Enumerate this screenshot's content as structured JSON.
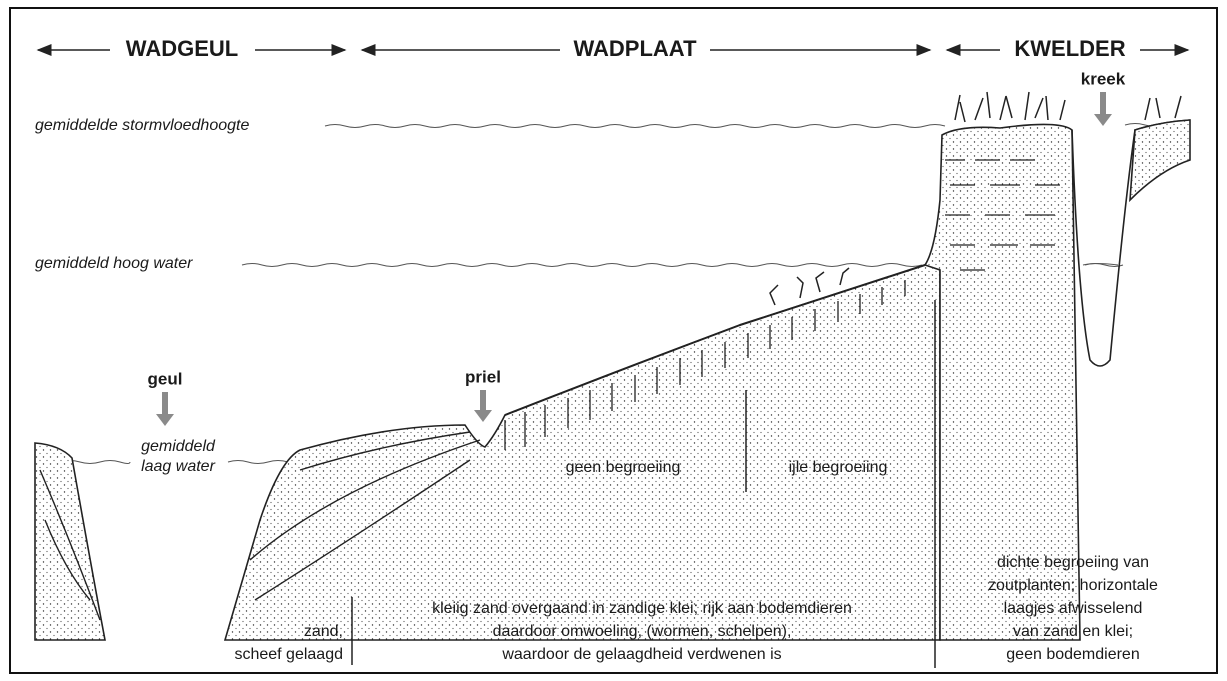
{
  "zones": {
    "wadgeul": "WADGEUL",
    "wadplaat": "WADPLAAT",
    "kwelder": "KWELDER"
  },
  "levels": {
    "storm": "gemiddelde stormvloedhoogte",
    "high": "gemiddeld hoog water",
    "low": [
      "gemiddeld",
      "laag water"
    ]
  },
  "markers": {
    "geul": "geul",
    "priel": "priel",
    "kreek": "kreek"
  },
  "vegetation": {
    "none": "geen begroeiing",
    "sparse": "ijle begroeiing"
  },
  "descriptions": {
    "sand": [
      "zand,",
      "scheef gelaagd"
    ],
    "wadplaat": [
      "kleiig zand overgaand in zandige klei; rijk aan bodemdieren",
      "daardoor omwoeling, (wormen, schelpen),",
      "waardoor de gelaagdheid verdwenen is"
    ],
    "kwelder": [
      "dichte begroeiing van",
      "zoutplanten; horizontale",
      "laagjes afwisselend",
      "van zand en klei;",
      "geen bodemdieren"
    ]
  }
}
